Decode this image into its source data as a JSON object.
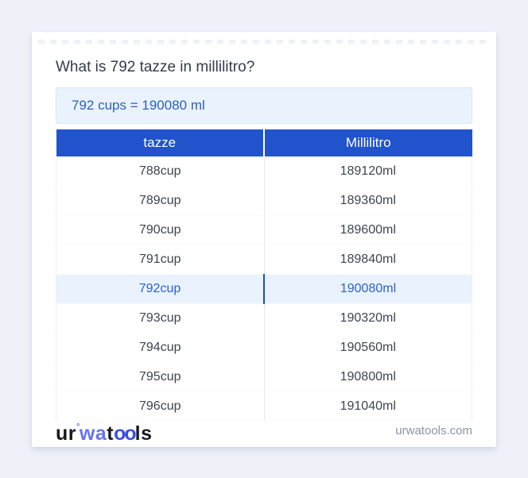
{
  "page": {
    "title": "What is 792 tazze in millilitro?",
    "result": "792 cups = 190080 ml",
    "domain": "urwatools.com"
  },
  "logo": {
    "part1": "ur",
    "degree": "°",
    "part2": "wa",
    "part3": "t",
    "part4": "oo",
    "part5": "ls"
  },
  "table": {
    "headers": [
      "tazze",
      "Millilitro"
    ],
    "rows": [
      {
        "cup": "788cup",
        "ml": "189120ml",
        "highlight": false
      },
      {
        "cup": "789cup",
        "ml": "189360ml",
        "highlight": false
      },
      {
        "cup": "790cup",
        "ml": "189600ml",
        "highlight": false
      },
      {
        "cup": "791cup",
        "ml": "189840ml",
        "highlight": false
      },
      {
        "cup": "792cup",
        "ml": "190080ml",
        "highlight": true
      },
      {
        "cup": "793cup",
        "ml": "190320ml",
        "highlight": false
      },
      {
        "cup": "794cup",
        "ml": "190560ml",
        "highlight": false
      },
      {
        "cup": "795cup",
        "ml": "190800ml",
        "highlight": false
      },
      {
        "cup": "796cup",
        "ml": "191040ml",
        "highlight": false
      }
    ]
  },
  "colors": {
    "accent": "#2153cd",
    "result_text": "#2a5fc2",
    "highlight_bg": "#e9f2fd",
    "highlight_fg": "#2b63cb",
    "logo_blue1": "#6672ee",
    "logo_blue2": "#3d50e0",
    "page_bg": "#eef1f8"
  }
}
